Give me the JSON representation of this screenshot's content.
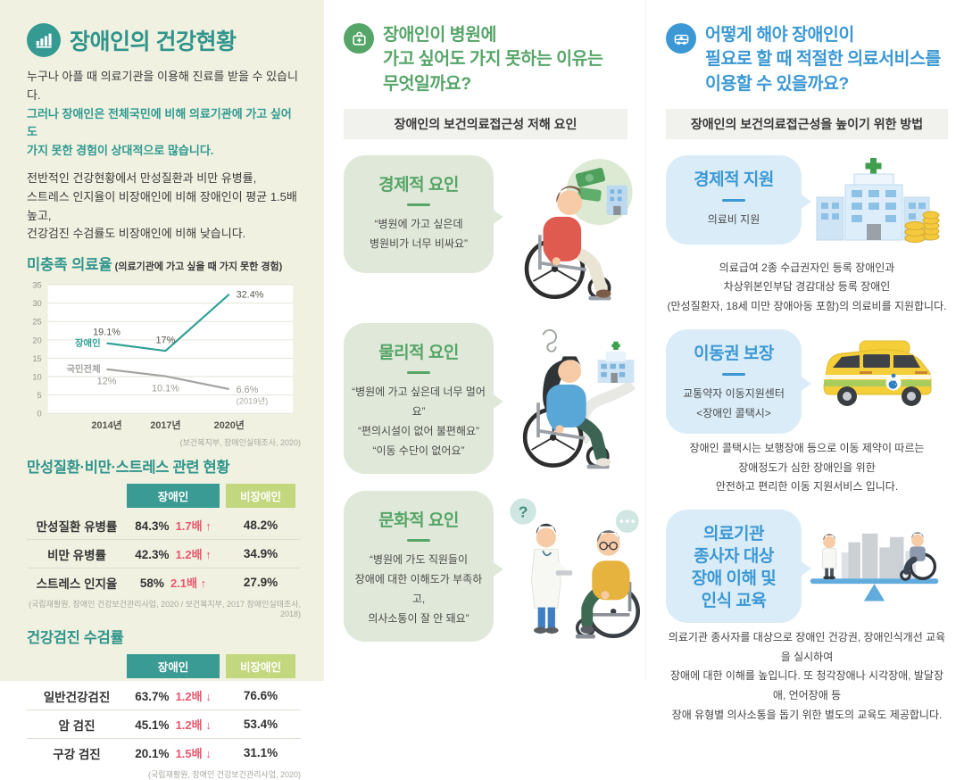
{
  "colors": {
    "teal": "#2f958c",
    "left_panel_bg": "#f0f1e1",
    "green": "#56a568",
    "green_bubble_bg": "#e0e9d9",
    "blue": "#3b98d4",
    "blue_bubble_bg": "#daecf8",
    "table_header_disabled_bg": "#399b93",
    "table_header_nondisabled_bg": "#c3d77e",
    "ratio_red": "#e8566e",
    "banner_bg": "#f1f1ee",
    "chart_line_disabled": "#2fa096",
    "chart_line_total": "#a3a3a0"
  },
  "left": {
    "title": "장애인의 건강현황",
    "intro1_lines": [
      "누구나 아플 때 의료기관을 이용해 진료를 받을 수 있습니다.",
      "그러나 장애인은 전체국민에 비해 의료기관에 가고 싶어도",
      "가지 못한 경험이 상대적으로 많습니다."
    ],
    "intro2_lines": [
      "전반적인 건강현황에서 만성질환과 비만 유병률,",
      "스트레스 인지율이 비장애인에 비해 장애인이 평균 1.5배 높고,",
      "건강검진 수검률도 비장애인에 비해 낮습니다."
    ],
    "chart_title": "미충족 의료율",
    "chart_subtitle": "(의료기관에 가고 싶을 때 가지 못한 경험)",
    "chart_source": "(보건복지부, 장애인실태조사, 2020)",
    "table1": {
      "title": "만성질환·비만·스트레스 관련 현황",
      "col_disabled": "장애인",
      "col_nondisabled": "비장애인",
      "rows": [
        {
          "label": "만성질환 유병률",
          "disabled": "84.3%",
          "ratio": "1.7배 ↑",
          "nondisabled": "48.2%"
        },
        {
          "label": "비만 유병률",
          "disabled": "42.3%",
          "ratio": "1.2배 ↑",
          "nondisabled": "34.9%"
        },
        {
          "label": "스트레스 인지율",
          "disabled": "58%",
          "ratio": "2.1배 ↑",
          "nondisabled": "27.9%"
        }
      ],
      "source": "(국립재활원, 장애인 건강보건관리사업, 2020 / 보건복지부, 2017 장애인실태조사, 2018)"
    },
    "table2": {
      "title": "건강검진 수검률",
      "col_disabled": "장애인",
      "col_nondisabled": "비장애인",
      "rows": [
        {
          "label": "일반건강검진",
          "disabled": "63.7%",
          "ratio": "1.2배 ↓",
          "nondisabled": "76.6%"
        },
        {
          "label": "암 검진",
          "disabled": "45.1%",
          "ratio": "1.2배 ↓",
          "nondisabled": "53.4%"
        },
        {
          "label": "구강 검진",
          "disabled": "20.1%",
          "ratio": "1.5배 ↓",
          "nondisabled": "31.1%"
        }
      ],
      "source": "(국립재활원, 장애인 건강보건관리사업, 2020)"
    }
  },
  "chart_data": {
    "type": "line",
    "title": "미충족 의료율",
    "subtitle": "(의료기관에 가고 싶을 때 가지 못한 경험)",
    "categories": [
      "2014년",
      "2017년",
      "2020년"
    ],
    "series": [
      {
        "name": "장애인",
        "values": [
          19.1,
          17,
          32.4
        ],
        "labels": [
          "19.1%",
          "17%",
          "32.4%"
        ],
        "color": "#2fa096"
      },
      {
        "name": "국민전체",
        "values": [
          12,
          10.1,
          6.6
        ],
        "labels": [
          "12%",
          "10.1%",
          "6.6%"
        ],
        "note": "(2019년)",
        "color": "#a3a3a0"
      }
    ],
    "ylim": [
      0,
      35
    ],
    "yticks": [
      0,
      5,
      10,
      15,
      20,
      25,
      30,
      35
    ],
    "grid": true,
    "legend_position": "inline-left-of-lines",
    "source": "(보건복지부, 장애인실태조사, 2020)"
  },
  "mid": {
    "title_lines": [
      "장애인이 병원에",
      "가고 싶어도 가지 못하는 이유는",
      "무엇일까요?"
    ],
    "banner": "장애인의 보건의료접근성 저해 요인",
    "sections": [
      {
        "title": "경제적 요인",
        "quotes": [
          "“병원에 가고 싶은데",
          "병원비가 너무 비싸요”"
        ],
        "illustration": "wheelchair-user-money-thought"
      },
      {
        "title": "물리적 요인",
        "quotes": [
          "“병원에 가고 싶은데 너무 멀어요”",
          "“편의시설이 없어 불편해요”",
          "“이동 수단이 없어요”"
        ],
        "illustration": "wheelchair-user-distant-hospital"
      },
      {
        "title": "문화적 요인",
        "quotes": [
          "“병원에 가도 직원들이",
          "장애에 대한 이해도가 부족하고,",
          "의사소통이 잘 안 돼요”"
        ],
        "illustration": "doctor-patient-communication"
      }
    ]
  },
  "right": {
    "title_lines": [
      "어떻게 해야 장애인이",
      "필요로 할 때 적절한 의료서비스를",
      "이용할 수 있을까요?"
    ],
    "banner": "장애인의 보건의료접근성을 높이기 위한 방법",
    "sections": [
      {
        "title_lines": [
          "경제적 지원"
        ],
        "bubble_lines": [
          "의료비 지원"
        ],
        "desc_lines": [
          "의료급여 2종 수급권자인 등록 장애인과",
          "차상위본인부담 경감대상 등록 장애인",
          "(만성질환자, 18세 미만 장애아동 포함)의 의료비를 지원합니다."
        ],
        "illustration": "hospital-and-coins"
      },
      {
        "title_lines": [
          "이동권 보장"
        ],
        "bubble_lines": [
          "교통약자 이동지원센터",
          "<장애인 콜택시>"
        ],
        "desc_lines": [
          "장애인 콜택시는 보행장애 등으로 이동 제약이 따르는",
          "장애정도가 심한 장애인을 위한",
          "안전하고 편리한 이동 지원서비스 입니다."
        ],
        "illustration": "wheelchair-taxi-van"
      },
      {
        "title_lines": [
          "의료기관",
          "종사자 대상",
          "장애 이해 및",
          "인식 교육"
        ],
        "bubble_lines": [],
        "desc_lines": [
          "의료기관 종사자를 대상으로 장애인 건강권, 장애인식개선 교육을 실시하여",
          "장애에 대한 이해를 높입니다. 또 청각장애나 시각장애, 발달장애, 언어장애 등",
          "장애 유형별 의사소통을 돕기 위한 별도의 교육도 제공합니다."
        ],
        "illustration": "balance-scale-education"
      }
    ]
  }
}
